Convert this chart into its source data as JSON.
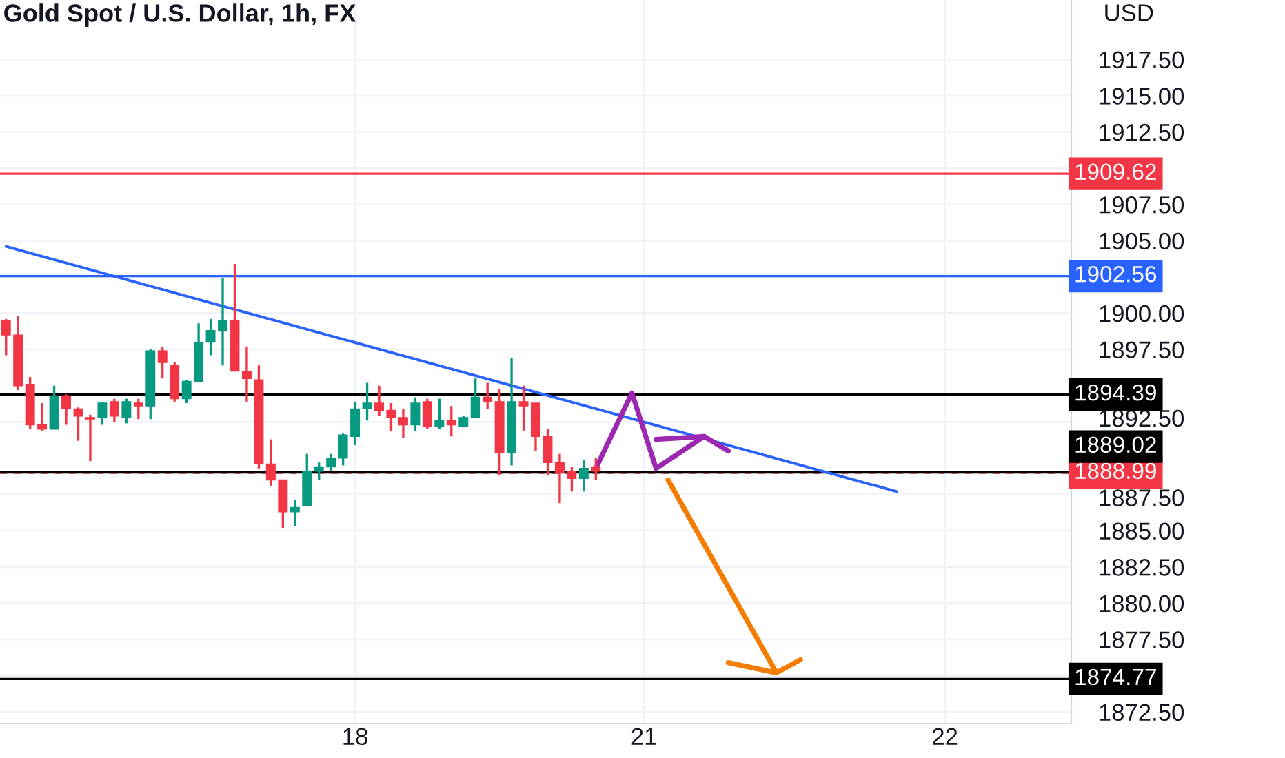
{
  "chart_data": {
    "type": "candlestick",
    "title": "Gold Spot / U.S. Dollar, 1h, FX",
    "ylabel": "USD",
    "categories": [
      null,
      null,
      null,
      null,
      null,
      null,
      null,
      null,
      null,
      null,
      null,
      null,
      null,
      null,
      null,
      null,
      null,
      null,
      null,
      null,
      null,
      null,
      null,
      null,
      null,
      null,
      null,
      null,
      null,
      "18",
      null,
      null,
      null,
      null,
      null,
      null,
      null,
      null,
      null,
      null,
      null,
      null,
      null,
      null,
      null,
      null,
      null,
      null,
      null,
      null,
      null,
      null,
      null,
      "21",
      null,
      null,
      null,
      null,
      null,
      null,
      null,
      null,
      null,
      null,
      null,
      null,
      null,
      null,
      null,
      null,
      null,
      null,
      null,
      null,
      null,
      null,
      null,
      null,
      "22",
      null,
      null,
      null,
      null,
      null,
      null,
      null,
      null,
      null,
      null
    ],
    "ohlc": [
      [
        1899.5,
        1899.6,
        1897.1,
        1898.5
      ],
      [
        1898.5,
        1899.8,
        1894.7,
        1895.0
      ],
      [
        1895.1,
        1895.6,
        1892.0,
        1892.3
      ],
      [
        1892.3,
        1893.8,
        1891.9,
        1892.0
      ],
      [
        1892.0,
        1895.0,
        1892.0,
        1894.3
      ],
      [
        1894.3,
        1894.4,
        1892.3,
        1893.4
      ],
      [
        1893.4,
        1893.5,
        1891.2,
        1892.9
      ],
      [
        1892.8,
        1893.0,
        1889.8,
        1892.7
      ],
      [
        1892.8,
        1893.9,
        1892.3,
        1893.8
      ],
      [
        1893.9,
        1894.1,
        1892.5,
        1892.9
      ],
      [
        1892.8,
        1894.1,
        1892.4,
        1893.9
      ],
      [
        1893.8,
        1894.1,
        1892.7,
        1893.6
      ],
      [
        1893.6,
        1897.5,
        1892.7,
        1897.4
      ],
      [
        1897.4,
        1897.7,
        1895.5,
        1896.6
      ],
      [
        1896.4,
        1896.6,
        1893.9,
        1894.1
      ],
      [
        1894.1,
        1895.4,
        1893.8,
        1895.3
      ],
      [
        1895.3,
        1899.3,
        1895.3,
        1898.0
      ],
      [
        1898.0,
        1899.6,
        1897.1,
        1898.8
      ],
      [
        1898.8,
        1902.4,
        1896.4,
        1899.5
      ],
      [
        1899.5,
        1903.4,
        1896.0,
        1896.0
      ],
      [
        1896.0,
        1897.7,
        1893.9,
        1895.5
      ],
      [
        1895.4,
        1896.4,
        1889.3,
        1889.6
      ],
      [
        1889.6,
        1891.3,
        1888.1,
        1888.5
      ],
      [
        1888.5,
        1888.5,
        1885.2,
        1886.3
      ],
      [
        1886.3,
        1887.1,
        1885.3,
        1886.6
      ],
      [
        1886.7,
        1890.3,
        1886.7,
        1889.1
      ],
      [
        1889.1,
        1889.7,
        1888.5,
        1889.4
      ],
      [
        1889.4,
        1890.3,
        1889.1,
        1890.0
      ],
      [
        1890.0,
        1891.7,
        1889.5,
        1891.6
      ],
      [
        1891.5,
        1893.9,
        1890.9,
        1893.4
      ],
      [
        1893.4,
        1895.2,
        1892.6,
        1893.8
      ],
      [
        1893.8,
        1895.0,
        1892.9,
        1893.3
      ],
      [
        1893.3,
        1893.8,
        1891.9,
        1892.8
      ],
      [
        1892.8,
        1893.4,
        1891.4,
        1892.3
      ],
      [
        1892.3,
        1894.2,
        1891.9,
        1893.8
      ],
      [
        1893.9,
        1894.1,
        1892.0,
        1892.2
      ],
      [
        1892.2,
        1894.1,
        1892.0,
        1892.6
      ],
      [
        1892.6,
        1893.6,
        1891.5,
        1892.3
      ],
      [
        1892.2,
        1892.9,
        1892.2,
        1892.8
      ],
      [
        1892.8,
        1895.5,
        1892.8,
        1894.2
      ],
      [
        1894.2,
        1895.2,
        1893.4,
        1893.9
      ],
      [
        1893.9,
        1894.8,
        1888.8,
        1890.4
      ],
      [
        1890.4,
        1896.9,
        1889.5,
        1893.9
      ],
      [
        1893.9,
        1895.0,
        1891.9,
        1893.6
      ],
      [
        1893.8,
        1893.8,
        1890.5,
        1891.5
      ],
      [
        1891.5,
        1892.0,
        1888.8,
        1889.7
      ],
      [
        1889.7,
        1890.3,
        1886.9,
        1889.0
      ],
      [
        1889.1,
        1889.4,
        1887.7,
        1888.6
      ],
      [
        1888.6,
        1889.9,
        1887.7,
        1889.3
      ],
      [
        1889.4,
        1890.0,
        1888.5,
        1889.1
      ],
      null,
      null,
      null,
      null,
      null,
      null,
      null,
      null,
      null,
      null,
      null,
      null,
      null,
      null,
      null,
      null,
      null,
      null,
      null,
      null,
      null,
      null,
      null,
      null,
      null,
      null,
      null,
      null,
      null,
      null,
      null,
      null,
      null,
      null,
      null,
      null,
      null,
      null,
      null
    ],
    "colors": [
      "#f23645",
      "#f23645",
      "#f23645",
      "#f23645",
      "#089981",
      "#f23645",
      "#f23645",
      "#f23645",
      "#089981",
      "#f23645",
      "#089981",
      "#f23645",
      "#089981",
      "#f23645",
      "#f23645",
      "#089981",
      "#089981",
      "#089981",
      "#089981",
      "#f23645",
      "#f23645",
      "#f23645",
      "#f23645",
      "#f23645",
      "#089981",
      "#089981",
      "#089981",
      "#089981",
      "#089981",
      "#089981",
      "#089981",
      "#f23645",
      "#f23645",
      "#f23645",
      "#089981",
      "#f23645",
      "#089981",
      "#f23645",
      "#089981",
      "#089981",
      "#f23645",
      "#f23645",
      "#089981",
      "#f23645",
      "#f23645",
      "#f23645",
      "#f23645",
      "#f23645",
      "#089981",
      "#f23645",
      null,
      null,
      null,
      null,
      null,
      null,
      null,
      null,
      null,
      null,
      null,
      null,
      null,
      null,
      null,
      null,
      null,
      null,
      null,
      null,
      null,
      null,
      null,
      null,
      null,
      null,
      null,
      null,
      null,
      null,
      null,
      null,
      null,
      null,
      null,
      null,
      null,
      null,
      null
    ],
    "series": [
      {
        "type": "line",
        "color": "#2962ff",
        "values": [
          1904.6,
          null,
          null,
          null,
          null,
          null,
          null,
          null,
          null,
          null,
          null,
          null,
          null,
          null,
          null,
          null,
          null,
          null,
          null,
          null,
          null,
          null,
          null,
          null,
          null,
          null,
          null,
          null,
          null,
          null,
          null,
          null,
          null,
          null,
          null,
          null,
          null,
          null,
          null,
          null,
          null,
          null,
          null,
          null,
          null,
          null,
          null,
          null,
          null,
          null,
          null,
          null,
          null,
          null,
          null,
          null,
          null,
          null,
          null,
          null,
          null,
          null,
          null,
          null,
          null,
          null,
          null,
          null,
          null,
          null,
          null,
          null,
          null,
          null,
          1887.7,
          null,
          null,
          null,
          null,
          null,
          null,
          null,
          null,
          null,
          null,
          null,
          null,
          null,
          null
        ]
      },
      {
        "type": "line",
        "color": "#9c27b0",
        "values": [
          null,
          null,
          null,
          null,
          null,
          null,
          null,
          null,
          null,
          null,
          null,
          null,
          null,
          null,
          null,
          null,
          null,
          null,
          null,
          null,
          null,
          null,
          null,
          null,
          null,
          null,
          null,
          null,
          null,
          null,
          null,
          null,
          null,
          null,
          null,
          null,
          null,
          null,
          null,
          null,
          null,
          null,
          null,
          null,
          null,
          null,
          null,
          null,
          null,
          1889.3,
          null,
          null,
          1894.5,
          null,
          1889.3,
          null,
          null,
          null,
          1891.5,
          null,
          1890.5,
          null,
          null,
          null,
          null,
          null,
          null,
          null,
          null,
          null,
          null,
          null,
          null,
          null,
          null,
          null,
          null,
          null,
          null,
          null,
          null,
          null,
          null,
          null,
          null,
          null,
          null,
          null,
          null
        ]
      },
      {
        "type": "line",
        "color": "#9c27b0",
        "values": [
          null,
          null,
          null,
          null,
          null,
          null,
          null,
          null,
          null,
          null,
          null,
          null,
          null,
          null,
          null,
          null,
          null,
          null,
          null,
          null,
          null,
          null,
          null,
          null,
          null,
          null,
          null,
          null,
          null,
          null,
          null,
          null,
          null,
          null,
          null,
          null,
          null,
          null,
          null,
          null,
          null,
          null,
          null,
          null,
          null,
          null,
          null,
          null,
          null,
          null,
          null,
          null,
          null,
          null,
          1891.3,
          null,
          null,
          null,
          1891.5,
          null,
          null,
          null,
          null,
          null,
          null,
          null,
          null,
          null,
          null,
          null,
          null,
          null,
          null,
          null,
          null,
          null,
          null,
          null,
          null,
          null,
          null,
          null,
          null,
          null,
          null,
          null,
          null,
          null,
          null
        ]
      },
      {
        "type": "line",
        "color": "#f57c00",
        "values": [
          null,
          null,
          null,
          null,
          null,
          null,
          null,
          null,
          null,
          null,
          null,
          null,
          null,
          null,
          null,
          null,
          null,
          null,
          null,
          null,
          null,
          null,
          null,
          null,
          null,
          null,
          null,
          null,
          null,
          null,
          null,
          null,
          null,
          null,
          null,
          null,
          null,
          null,
          null,
          null,
          null,
          null,
          null,
          null,
          null,
          null,
          null,
          null,
          null,
          null,
          null,
          null,
          null,
          null,
          null,
          1888.5,
          null,
          null,
          null,
          null,
          null,
          null,
          null,
          null,
          1875.2,
          null,
          null,
          null,
          null,
          null,
          null,
          null,
          null,
          null,
          null,
          null,
          null,
          null,
          null,
          null,
          null,
          null,
          null,
          null,
          null,
          null,
          null,
          null,
          null
        ]
      },
      {
        "type": "line",
        "color": "#f57c00",
        "values": [
          null,
          null,
          null,
          null,
          null,
          null,
          null,
          null,
          null,
          null,
          null,
          null,
          null,
          null,
          null,
          null,
          null,
          null,
          null,
          null,
          null,
          null,
          null,
          null,
          null,
          null,
          null,
          null,
          null,
          null,
          null,
          null,
          null,
          null,
          null,
          null,
          null,
          null,
          null,
          null,
          null,
          null,
          null,
          null,
          null,
          null,
          null,
          null,
          null,
          null,
          null,
          null,
          null,
          null,
          null,
          null,
          null,
          null,
          null,
          null,
          1875.9,
          null,
          null,
          null,
          1875.2,
          null,
          1876.1,
          null,
          null,
          null,
          null,
          null,
          null,
          null,
          null,
          null,
          null,
          null,
          null,
          null,
          null,
          null,
          null,
          null,
          null,
          null,
          null,
          null,
          null
        ]
      }
    ],
    "ref_lines": [
      {
        "axis": "y",
        "value": 1909.62,
        "label": "1909.62",
        "color": "#f23645"
      },
      {
        "axis": "y",
        "value": 1902.56,
        "label": "1902.56",
        "color": "#2962ff"
      },
      {
        "axis": "y",
        "value": 1894.39,
        "label": "1894.39",
        "color": "#000000"
      },
      {
        "axis": "y",
        "value": 1889.02,
        "label": "1889.02",
        "color": "#000000"
      },
      {
        "axis": "y",
        "value": 1888.99,
        "label": "1888.99",
        "color": "#f23645",
        "line_style": "dashed"
      },
      {
        "axis": "y",
        "value": 1874.77,
        "label": "1874.77",
        "color": "#000000"
      }
    ],
    "ylim": [
      1871.7,
      1921.6
    ],
    "yticks": [
      {
        "value": 1872.5,
        "label": "1872.50"
      },
      {
        "value": 1875,
        "label": null
      },
      {
        "value": 1877.5,
        "label": "1877.50"
      },
      {
        "value": 1880,
        "label": "1880.00"
      },
      {
        "value": 1882.5,
        "label": "1882.50"
      },
      {
        "value": 1885,
        "label": "1885.00"
      },
      {
        "value": 1887.5,
        "label": "1887.50"
      },
      {
        "value": 1892.5,
        "label": "1892.50"
      },
      {
        "value": 1897.5,
        "label": "1897.50"
      },
      {
        "value": 1900,
        "label": "1900.00"
      },
      {
        "value": 1902.5,
        "label": null
      },
      {
        "value": 1905,
        "label": "1905.00"
      },
      {
        "value": 1907.5,
        "label": "1907.50"
      },
      {
        "value": 1910,
        "label": null
      },
      {
        "value": 1912.5,
        "label": "1912.50"
      },
      {
        "value": 1915,
        "label": "1915.00"
      },
      {
        "value": 1917.5,
        "label": "1917.50"
      }
    ],
    "grid": true
  }
}
